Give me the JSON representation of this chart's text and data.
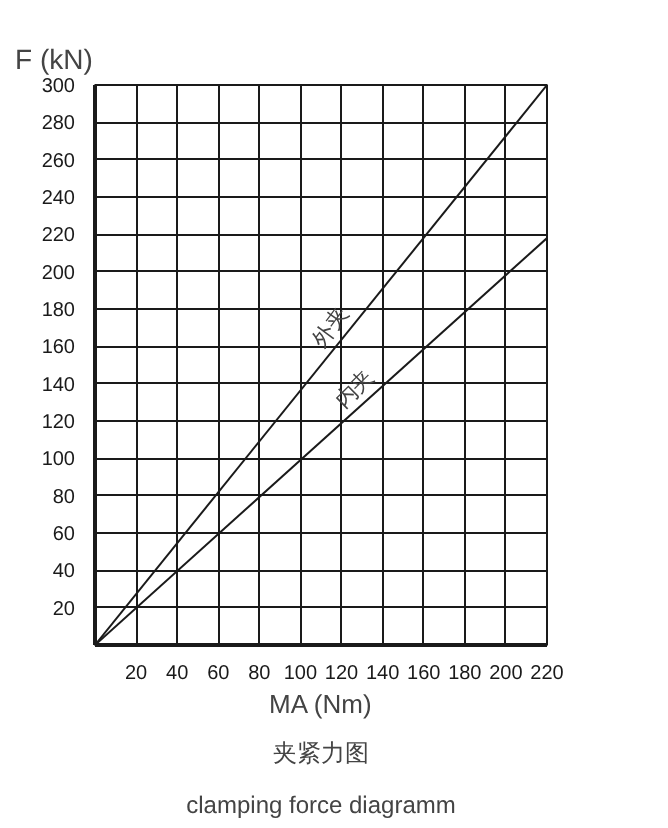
{
  "chart_data": {
    "type": "line",
    "title": "夹紧力图",
    "subtitle": "clamping force diagramm",
    "xlabel": "MA (Nm)",
    "ylabel": "F (kN)",
    "x": [
      0,
      220
    ],
    "series": [
      {
        "name": "外夹",
        "color": "#1a1a1a",
        "values": [
          0,
          300
        ]
      },
      {
        "name": "内夹",
        "color": "#1a1a1a",
        "values": [
          0,
          218
        ]
      }
    ],
    "xlim": [
      0,
      220
    ],
    "ylim": [
      0,
      300
    ],
    "xticks": [
      20,
      40,
      60,
      80,
      100,
      120,
      140,
      160,
      180,
      200,
      220
    ],
    "yticks": [
      20,
      40,
      60,
      80,
      100,
      120,
      140,
      160,
      180,
      200,
      220,
      240,
      260,
      280,
      300
    ],
    "grid": true,
    "marker": "none",
    "line_style": "solid"
  }
}
